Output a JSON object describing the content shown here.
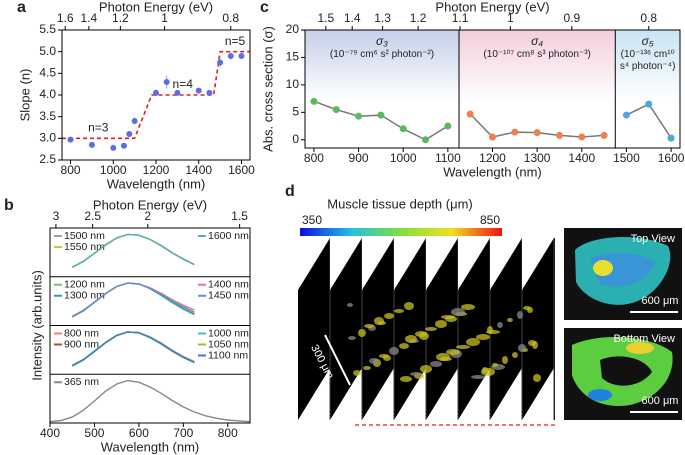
{
  "chart_data": [
    {
      "type": "scatter",
      "panel_label": "a",
      "top_label": "Photon Energy (eV)",
      "x2ticks": [
        1.6,
        1.4,
        1.2,
        1,
        0.8
      ],
      "xlabel": "Wavelength (nm)",
      "ylabel": "Slope (n)",
      "xlim": [
        760,
        1640
      ],
      "ylim": [
        2.5,
        5.5
      ],
      "xticks": [
        800,
        1000,
        1200,
        1400,
        1600
      ],
      "yticks": [
        2.5,
        {
          "value": 3,
          "label": "3.0"
        },
        3.5,
        {
          "value": 4,
          "label": "4.0"
        },
        4.5,
        {
          "value": 5,
          "label": "5.0"
        },
        5.5
      ],
      "color": "#5b6ee1",
      "x": [
        800,
        900,
        1000,
        1050,
        1075,
        1100,
        1200,
        1250,
        1300,
        1400,
        1450,
        1500,
        1550,
        1600
      ],
      "values": [
        2.97,
        2.85,
        2.78,
        2.83,
        3.1,
        3.4,
        4.05,
        4.3,
        4.05,
        4.1,
        4.05,
        4.75,
        4.9,
        4.9
      ],
      "errors": [
        0.04,
        0.04,
        0.04,
        0.05,
        0.06,
        0.08,
        0.08,
        0.15,
        0.05,
        0.06,
        0.05,
        0.12,
        0.08,
        0.06
      ],
      "steps": {
        "color": "#e02020",
        "x": [
          760,
          1100,
          1180,
          1470,
          1500,
          1640
        ],
        "values": [
          3,
          3,
          4,
          4,
          5,
          5
        ]
      },
      "annotations": [
        "n=3",
        "n=4",
        "n=5"
      ]
    },
    {
      "type": "line",
      "panel_label": "b",
      "top_label": "Photon Energy (eV)",
      "x2ticks": [
        3,
        2.5,
        2,
        1.5
      ],
      "xlabel": "Wavelength (nm)",
      "ylabel": "Intensity (arb.units)",
      "xlim": [
        400,
        850
      ],
      "xticks": [
        400,
        500,
        600,
        700,
        800
      ],
      "panels": [
        {
          "ylim": [
            0,
            1.15
          ],
          "x": [
            450,
            475,
            500,
            525,
            550,
            575,
            600,
            625,
            650,
            675,
            700,
            725
          ],
          "series": [
            {
              "name": "1500 nm",
              "color": "#8db08a",
              "legend": "left",
              "values": [
                0.22,
                0.36,
                0.55,
                0.75,
                0.92,
                1.0,
                0.98,
                0.88,
                0.73,
                0.56,
                0.41,
                0.28
              ]
            },
            {
              "name": "1550 nm",
              "color": "#c8c43a",
              "legend": "left",
              "values": [
                0.23,
                0.37,
                0.56,
                0.76,
                0.92,
                1.0,
                0.98,
                0.88,
                0.73,
                0.56,
                0.42,
                0.29
              ]
            },
            {
              "name": "1600 nm",
              "color": "#4fb0c6",
              "legend": "right",
              "values": [
                0.22,
                0.36,
                0.55,
                0.75,
                0.91,
                1.0,
                0.98,
                0.88,
                0.74,
                0.57,
                0.42,
                0.29
              ]
            }
          ]
        },
        {
          "ylim": [
            0,
            1.15
          ],
          "x": [
            450,
            475,
            500,
            525,
            550,
            575,
            600,
            625,
            650,
            675,
            700,
            725
          ],
          "series": [
            {
              "name": "1200 nm",
              "color": "#7cc26a",
              "legend": "left",
              "values": [
                0.2,
                0.34,
                0.54,
                0.75,
                0.92,
                1.0,
                0.98,
                0.87,
                0.71,
                0.54,
                0.38,
                0.25
              ]
            },
            {
              "name": "1300 nm",
              "color": "#3a9ca8",
              "legend": "left",
              "values": [
                0.21,
                0.35,
                0.55,
                0.75,
                0.92,
                1.0,
                0.98,
                0.87,
                0.72,
                0.55,
                0.4,
                0.27
              ]
            },
            {
              "name": "1400 nm",
              "color": "#e87a8a",
              "legend": "right",
              "values": [
                0.22,
                0.36,
                0.55,
                0.76,
                0.92,
                1.0,
                0.98,
                0.89,
                0.76,
                0.61,
                0.48,
                0.36
              ]
            },
            {
              "name": "1450 nm",
              "color": "#5b8fd6",
              "legend": "right",
              "values": [
                0.21,
                0.35,
                0.55,
                0.75,
                0.92,
                1.0,
                0.98,
                0.88,
                0.74,
                0.58,
                0.44,
                0.31
              ]
            }
          ]
        },
        {
          "ylim": [
            0,
            1.15
          ],
          "x": [
            450,
            475,
            500,
            525,
            550,
            575,
            600,
            625,
            650,
            675,
            700,
            725
          ],
          "series": [
            {
              "name": "800 nm",
              "color": "#f08070",
              "legend": "left",
              "values": [
                0.2,
                0.34,
                0.54,
                0.75,
                0.92,
                1.0,
                0.98,
                0.88,
                0.74,
                0.57,
                0.42,
                0.3
              ]
            },
            {
              "name": "900 nm",
              "color": "#b04a3a",
              "legend": "left",
              "values": [
                0.2,
                0.34,
                0.54,
                0.74,
                0.91,
                1.0,
                0.98,
                0.87,
                0.72,
                0.55,
                0.4,
                0.28
              ]
            },
            {
              "name": "1000 nm",
              "color": "#3ec0d8",
              "legend": "right",
              "values": [
                0.21,
                0.35,
                0.55,
                0.75,
                0.92,
                1.0,
                0.98,
                0.88,
                0.73,
                0.56,
                0.41,
                0.29
              ]
            },
            {
              "name": "1050 nm",
              "color": "#a0c040",
              "legend": "right",
              "values": [
                0.19,
                0.33,
                0.53,
                0.74,
                0.91,
                1.0,
                0.97,
                0.86,
                0.71,
                0.54,
                0.39,
                0.27
              ]
            },
            {
              "name": "1100 nm",
              "color": "#3a7ad0",
              "legend": "right",
              "values": [
                0.2,
                0.34,
                0.54,
                0.75,
                0.92,
                1.0,
                0.98,
                0.87,
                0.72,
                0.55,
                0.4,
                0.28
              ]
            }
          ]
        },
        {
          "ylim": [
            0,
            1.15
          ],
          "x": [
            400,
            425,
            450,
            475,
            500,
            525,
            550,
            575,
            600,
            625,
            650,
            675,
            700,
            725,
            750,
            775,
            800,
            825,
            850
          ],
          "series": [
            {
              "name": "365 nm",
              "color": "#888888",
              "legend": "left",
              "values": [
                0.03,
                0.06,
                0.14,
                0.3,
                0.52,
                0.75,
                0.92,
                1.0,
                0.96,
                0.85,
                0.7,
                0.53,
                0.38,
                0.26,
                0.17,
                0.11,
                0.07,
                0.05,
                0.03
              ]
            }
          ]
        }
      ]
    },
    {
      "type": "line",
      "panel_label": "c",
      "top_label": "Photon Energy (eV)",
      "x2ticks": [
        1.5,
        1.4,
        1.3,
        1.2,
        1.1,
        1,
        0.9,
        0.8
      ],
      "xlabel": "Wavelength (nm)",
      "ylabel": "Abs. cross section (σ)",
      "xlim": [
        780,
        1620
      ],
      "ylim": [
        -1.5,
        20
      ],
      "xticks": [
        800,
        900,
        1000,
        1100,
        1200,
        1300,
        1400,
        1500,
        1600
      ],
      "yticks": [
        0,
        5,
        10,
        15,
        20
      ],
      "line_color": "#777777",
      "series": [
        {
          "name": "σ₃",
          "unit": "(10⁻⁷⁹ cm⁶ s² photon⁻²)",
          "color": "#5cb85c",
          "band_color": "#c4cfe9",
          "x": [
            800,
            850,
            900,
            950,
            1000,
            1050,
            1100
          ],
          "values": [
            7,
            5.5,
            4.3,
            4.5,
            2,
            0,
            2.5
          ]
        },
        {
          "name": "σ₄",
          "unit": "(10⁻¹⁰⁷ cm⁸ s³ photon⁻³)",
          "color": "#ef7f4f",
          "band_color": "#f3cfd9",
          "x": [
            1150,
            1200,
            1250,
            1300,
            1350,
            1400,
            1450
          ],
          "values": [
            4.7,
            0.5,
            1.4,
            1.3,
            0.8,
            0.5,
            0.8
          ]
        },
        {
          "name": "σ₅",
          "unit": "(10⁻¹³⁶ cm¹⁰ s⁴ photon⁻⁴)",
          "color": "#4aa8e0",
          "band_color": "#c8e3f4",
          "x": [
            1500,
            1550,
            1600
          ],
          "values": [
            4.5,
            6.5,
            0.3
          ]
        }
      ]
    }
  ],
  "panel_d": {
    "label": "d",
    "colorbar_title": "Muscle tissue depth (μm)",
    "colorbar_min": 350,
    "colorbar_max": 850,
    "depth_scale": "300 μm",
    "top_view": "Top View",
    "top_scale": "600 μm",
    "bottom_view": "Bottom View",
    "bottom_scale": "600 μm"
  }
}
